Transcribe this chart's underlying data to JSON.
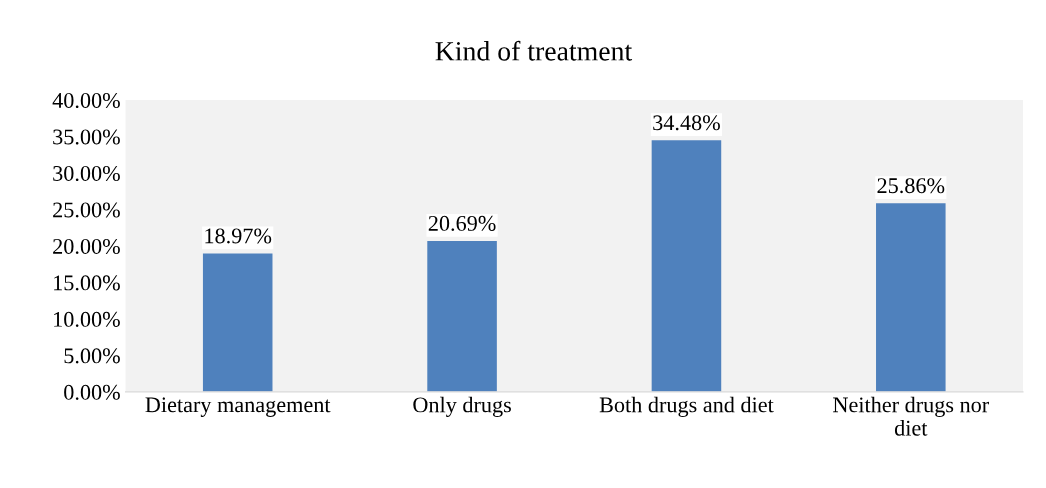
{
  "chart_data": {
    "type": "bar",
    "title": "Kind of treatment",
    "categories": [
      "Dietary management",
      "Only drugs",
      "Both drugs and diet",
      "Neither drugs nor diet"
    ],
    "values": [
      18.97,
      20.69,
      34.48,
      25.86
    ],
    "color": "#4f81bd",
    "value_labels": [
      "18.97%",
      "20.69%",
      "34.48%",
      "25.86%"
    ],
    "ylim": [
      0,
      40
    ],
    "yticks": [
      {
        "value": 0,
        "label": "0.00%"
      },
      {
        "value": 5,
        "label": "5.00%"
      },
      {
        "value": 10,
        "label": "10.00%"
      },
      {
        "value": 15,
        "label": "15.00%"
      },
      {
        "value": 20,
        "label": "20.00%"
      },
      {
        "value": 25,
        "label": "25.00%"
      },
      {
        "value": 30,
        "label": "30.00%"
      },
      {
        "value": 35,
        "label": "35.00%"
      },
      {
        "value": 40,
        "label": "40.00%"
      }
    ],
    "grid": false,
    "legend": false
  }
}
